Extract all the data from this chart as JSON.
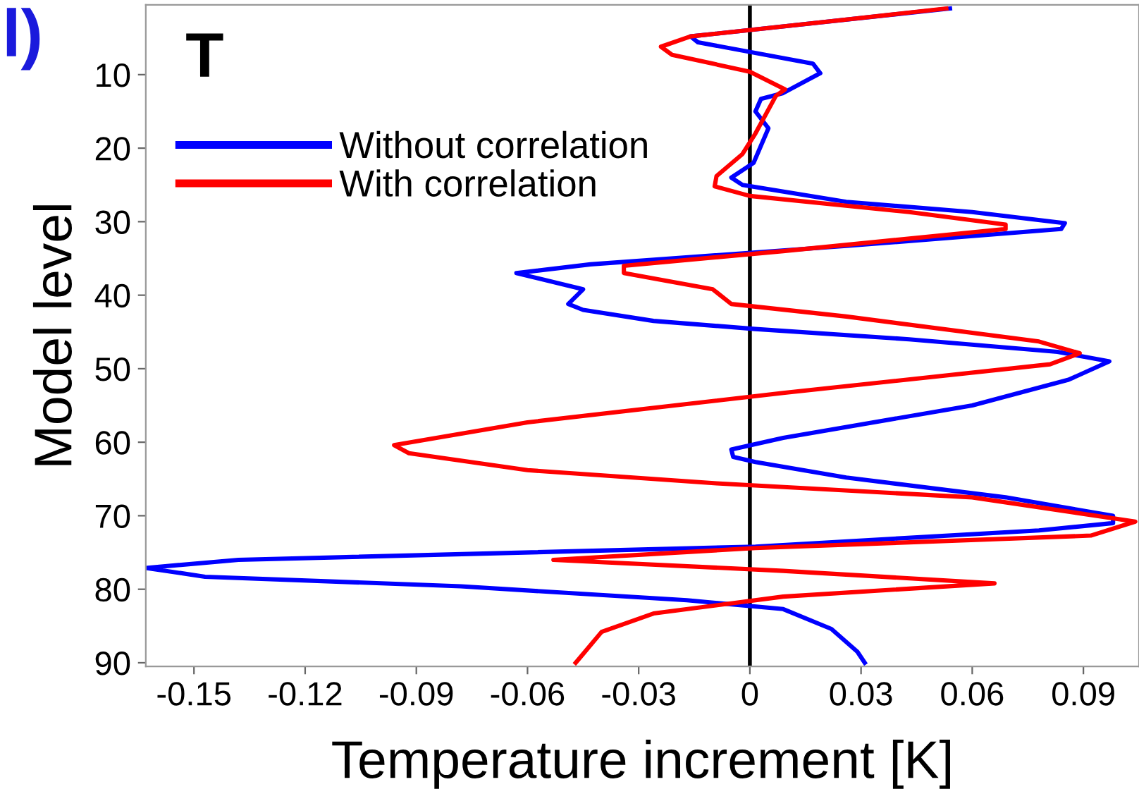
{
  "chart_data": {
    "type": "line",
    "xlabel": "Temperature increment [K]",
    "ylabel": "Model level",
    "annotations": [
      "l)",
      "T"
    ],
    "xlim": [
      -0.163,
      0.105
    ],
    "xticks": [
      {
        "value": -0.15,
        "label": "-0.15"
      },
      {
        "value": -0.12,
        "label": "-0.12"
      },
      {
        "value": -0.09,
        "label": "-0.09"
      },
      {
        "value": -0.06,
        "label": "-0.06"
      },
      {
        "value": -0.03,
        "label": "-0.03"
      },
      0,
      0.03,
      0.06,
      0.09
    ],
    "ylim": [
      90.5,
      0.5
    ],
    "yticks": [
      10,
      20,
      30,
      40,
      50,
      60,
      70,
      80,
      90
    ],
    "ref_lines": [
      {
        "axis": "x",
        "value": 0,
        "color": "#000000"
      }
    ],
    "legend": "top left",
    "grid": false,
    "marker": "none",
    "line_style": "solid",
    "series": [
      {
        "name": "Without correlation",
        "color": "#0000ff",
        "x": [
          0.054,
          -0.016,
          -0.014,
          0.017,
          0.019,
          0.009,
          0.003,
          0.0015,
          0.005,
          0.001,
          -0.005,
          -0.002,
          0.026,
          0.06,
          0.085,
          0.084,
          0.026,
          -0.043,
          -0.063,
          -0.045,
          -0.049,
          -0.045,
          -0.026,
          0.0015,
          0.043,
          0.083,
          0.097,
          0.086,
          0.06,
          0.009,
          -0.005,
          -0.0045,
          0.0015,
          0.026,
          0.069,
          0.098,
          0.098,
          0.078,
          0.0015,
          -0.138,
          -0.163,
          -0.147,
          -0.078,
          -0.017,
          0.009,
          0.022,
          0.029,
          0.031
        ],
        "values": [
          1,
          4.8,
          5.6,
          8.5,
          9.8,
          12.5,
          13.3,
          15,
          17.3,
          22,
          24,
          25,
          27.3,
          28.7,
          30.2,
          31,
          33.3,
          35.8,
          37,
          39.2,
          41.2,
          42,
          43.5,
          44.6,
          46,
          47.7,
          49,
          51.5,
          55,
          59.4,
          61,
          62,
          62.7,
          64.8,
          67.5,
          70,
          71,
          72,
          74.2,
          76,
          77.1,
          78.3,
          79.6,
          81.5,
          82.7,
          85.4,
          88.5,
          90
        ]
      },
      {
        "name": "With correlation",
        "color": "#ff0000",
        "x": [
          0.053,
          0.026,
          -0.016,
          -0.024,
          -0.021,
          0,
          0.0095,
          0.007,
          0.0015,
          -0.002,
          -0.009,
          -0.0095,
          0,
          0.043,
          0.069,
          0.069,
          0.009,
          -0.034,
          -0.034,
          -0.01,
          -0.005,
          0.026,
          0.078,
          0.089,
          0.081,
          0.009,
          -0.06,
          -0.096,
          -0.092,
          -0.06,
          -0.009,
          0.06,
          0.104,
          0.092,
          0.0015,
          -0.053,
          0.009,
          0.066,
          0.009,
          -0.026,
          -0.04,
          -0.045,
          -0.047
        ],
        "values": [
          1,
          2.5,
          4.8,
          6.2,
          7.3,
          9.6,
          12,
          12.9,
          18,
          20.8,
          23.8,
          25.2,
          26.5,
          28.7,
          30.4,
          31,
          34,
          36,
          37,
          39.2,
          41.2,
          42.9,
          46.3,
          47.9,
          49.4,
          53.3,
          57.3,
          60.4,
          61.5,
          63.8,
          65.6,
          67.5,
          70.8,
          72.7,
          74.4,
          76,
          77.5,
          79.2,
          81,
          83.3,
          85.8,
          88.8,
          90
        ]
      }
    ]
  }
}
